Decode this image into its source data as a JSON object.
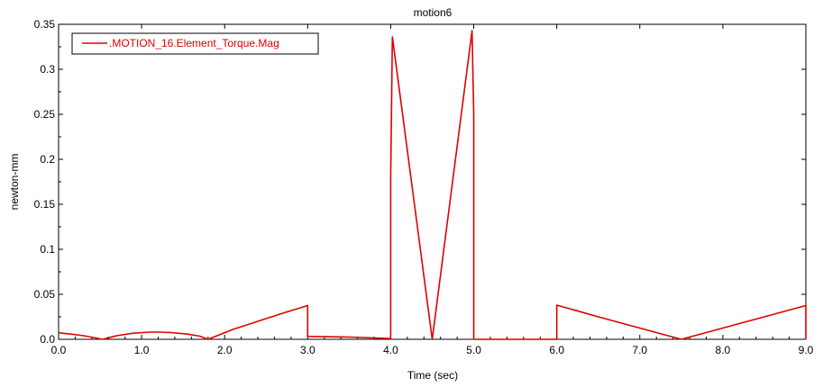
{
  "chart_data": {
    "type": "line",
    "title": "motion6",
    "xlabel": "Time (sec)",
    "ylabel": "newton-mm",
    "xlim": [
      0.0,
      9.0
    ],
    "ylim": [
      0.0,
      0.35
    ],
    "x_ticks": [
      0.0,
      1.0,
      2.0,
      3.0,
      4.0,
      5.0,
      6.0,
      7.0,
      8.0,
      9.0
    ],
    "x_tick_labels": [
      "0.0",
      "1.0",
      "2.0",
      "3.0",
      "4.0",
      "5.0",
      "6.0",
      "7.0",
      "8.0",
      "9.0"
    ],
    "y_ticks": [
      0.0,
      0.05,
      0.1,
      0.15,
      0.2,
      0.25,
      0.3,
      0.35
    ],
    "y_tick_labels": [
      "0.0",
      "0.05",
      "0.1",
      "0.15",
      "0.2",
      "0.25",
      "0.3",
      "0.35"
    ],
    "grid": false,
    "legend_position": "top-left",
    "series": [
      {
        "name": ".MOTION_16.Element_Torque.Mag",
        "color": "#e00000",
        "x": [
          0.0,
          0.15,
          0.3,
          0.45,
          0.53,
          0.7,
          0.9,
          1.1,
          1.2,
          1.35,
          1.55,
          1.7,
          1.8,
          2.1,
          2.4,
          2.7,
          3.0,
          3.0,
          3.5,
          4.0,
          4.0,
          4.02,
          4.5,
          4.98,
          5.0,
          5.0,
          5.5,
          6.0,
          6.0,
          6.5,
          7.0,
          7.5,
          8.0,
          8.5,
          9.0,
          9.0
        ],
        "values": [
          0.0072,
          0.0058,
          0.004,
          0.0015,
          0.0,
          0.004,
          0.0068,
          0.008,
          0.008,
          0.0075,
          0.0058,
          0.0035,
          0.0,
          0.011,
          0.02,
          0.029,
          0.0375,
          0.0032,
          0.0025,
          0.0008,
          0.18,
          0.336,
          0.0,
          0.343,
          0.25,
          0.0,
          0.0,
          0.0,
          0.038,
          0.025,
          0.0125,
          0.0,
          0.0125,
          0.025,
          0.0375,
          0.0
        ]
      }
    ]
  }
}
